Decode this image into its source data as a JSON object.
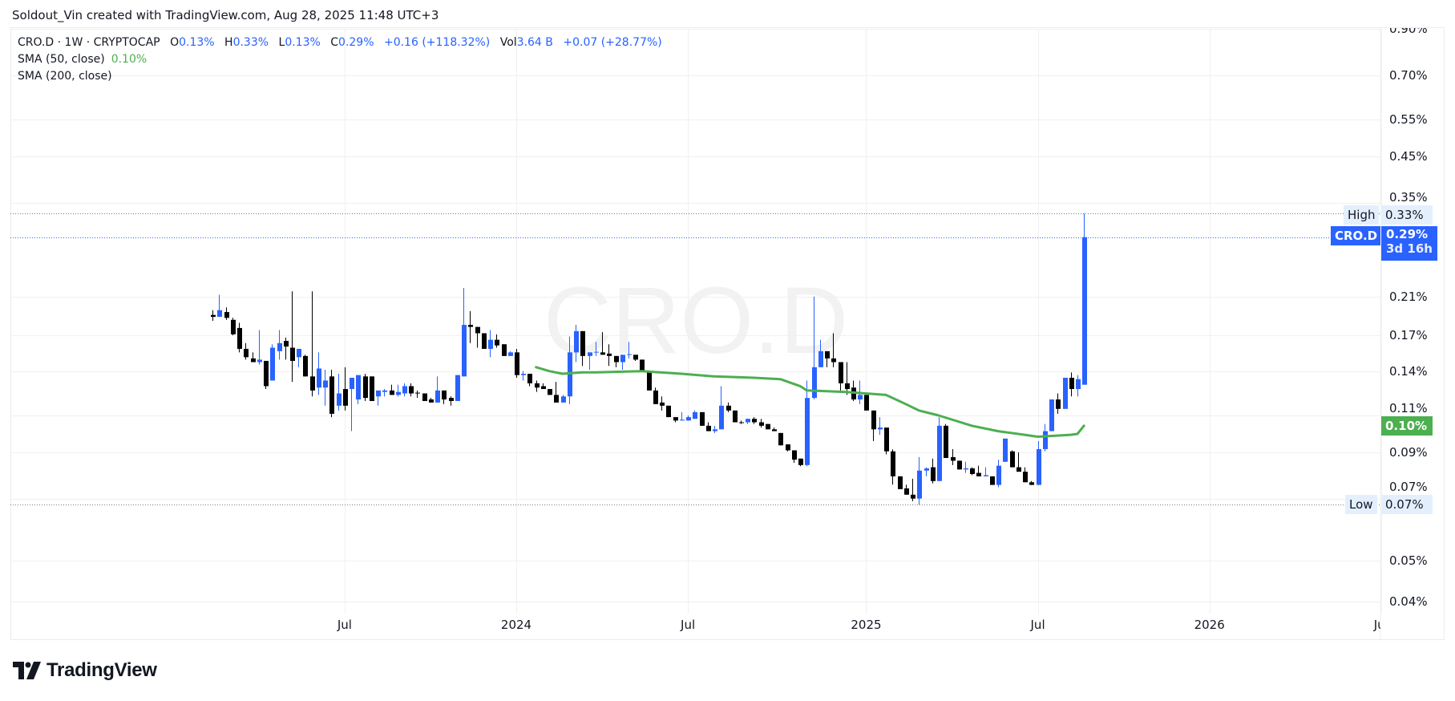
{
  "credit": "Soldout_Vin created with TradingView.com, Aug 28, 2025 11:48 UTC+3",
  "legend": {
    "symbol_line": "CRO.D · 1W · CRYPTOCAP",
    "open_label": "O",
    "open": "0.13%",
    "high_label": "H",
    "high": "0.33%",
    "low_label": "L",
    "low": "0.13%",
    "close_label": "C",
    "close": "0.29%",
    "change": "+0.16 (+118.32%)",
    "vol_label": "Vol",
    "vol": "3.64 B",
    "vol_change": "+0.07 (+28.77%)",
    "sma50_label": "SMA (50, close)",
    "sma50_value": "0.10%",
    "sma200_label": "SMA (200, close)"
  },
  "watermark": "CRO.D",
  "price_labels": {
    "high_tag": "High",
    "high_value": "0.33%",
    "symbol_tag": "CRO.D",
    "last_value": "0.29%",
    "countdown": "3d 16h",
    "sma_value": "0.10%",
    "low_tag": "Low",
    "low_value": "0.07%"
  },
  "logo_text": "TradingView",
  "colors": {
    "up": "#2962ff",
    "down": "#000000",
    "sma50": "#4caf50",
    "grid": "#f0f0f0",
    "label_bg": "#e3effd"
  },
  "chart_data": {
    "type": "candlestick",
    "symbol": "CRO.D",
    "interval": "1W",
    "y_scale": "log",
    "ylim": [
      0.038,
      0.92
    ],
    "grid": true,
    "y_ticks": [
      {
        "value": 0.9,
        "label": "0.90%"
      },
      {
        "value": 0.7,
        "label": "0.70%"
      },
      {
        "value": 0.55,
        "label": "0.55%"
      },
      {
        "value": 0.45,
        "label": "0.45%"
      },
      {
        "value": 0.35,
        "label": "0.35%"
      },
      {
        "value": 0.21,
        "label": "0.21%"
      },
      {
        "value": 0.17,
        "label": "0.17%"
      },
      {
        "value": 0.14,
        "label": "0.14%"
      },
      {
        "value": 0.11,
        "label": "0.11%"
      },
      {
        "value": 0.09,
        "label": "0.09%"
      },
      {
        "value": 0.07,
        "label": "0.07%"
      },
      {
        "value": 0.05,
        "label": "0.05%"
      },
      {
        "value": 0.04,
        "label": "0.04%"
      }
    ],
    "x_ticks": [
      {
        "date": "2023-07-03",
        "label": "Jul"
      },
      {
        "date": "2024-01-01",
        "label": "2024"
      },
      {
        "date": "2024-07-01",
        "label": "Jul"
      },
      {
        "date": "2025-01-06",
        "label": "2025"
      },
      {
        "date": "2025-07-07",
        "label": "Jul"
      },
      {
        "date": "2026-01-05",
        "label": "2026"
      },
      {
        "date": "2026-07-06",
        "label": "Jul"
      }
    ],
    "high_line": 0.33,
    "last_price": 0.29,
    "low_line": 0.0677,
    "columns": [
      "date",
      "open",
      "high",
      "low",
      "close"
    ],
    "candles": [
      [
        "2023-02-13",
        0.19,
        0.195,
        0.184,
        0.188
      ],
      [
        "2023-02-20",
        0.188,
        0.212,
        0.188,
        0.195
      ],
      [
        "2023-02-27",
        0.193,
        0.198,
        0.185,
        0.187
      ],
      [
        "2023-03-06",
        0.185,
        0.187,
        0.17,
        0.171
      ],
      [
        "2023-03-13",
        0.177,
        0.182,
        0.155,
        0.158
      ],
      [
        "2023-03-20",
        0.158,
        0.163,
        0.149,
        0.151
      ],
      [
        "2023-03-27",
        0.15,
        0.155,
        0.147,
        0.147
      ],
      [
        "2023-04-03",
        0.147,
        0.175,
        0.145,
        0.149
      ],
      [
        "2023-04-10",
        0.148,
        0.148,
        0.127,
        0.129
      ],
      [
        "2023-04-17",
        0.133,
        0.162,
        0.133,
        0.159
      ],
      [
        "2023-04-24",
        0.156,
        0.175,
        0.149,
        0.163
      ],
      [
        "2023-05-01",
        0.165,
        0.168,
        0.149,
        0.16
      ],
      [
        "2023-05-08",
        0.159,
        0.216,
        0.132,
        0.148
      ],
      [
        "2023-05-15",
        0.151,
        0.158,
        0.143,
        0.158
      ],
      [
        "2023-05-22",
        0.152,
        0.153,
        0.136,
        0.136
      ],
      [
        "2023-05-29",
        0.136,
        0.216,
        0.122,
        0.126
      ],
      [
        "2023-06-05",
        0.128,
        0.155,
        0.123,
        0.142
      ],
      [
        "2023-06-12",
        0.128,
        0.141,
        0.116,
        0.133
      ],
      [
        "2023-06-19",
        0.136,
        0.141,
        0.109,
        0.111
      ],
      [
        "2023-06-26",
        0.116,
        0.138,
        0.113,
        0.124
      ],
      [
        "2023-07-03",
        0.127,
        0.143,
        0.113,
        0.116
      ],
      [
        "2023-07-10",
        0.127,
        0.135,
        0.101,
        0.135
      ],
      [
        "2023-07-17",
        0.12,
        0.137,
        0.117,
        0.137
      ],
      [
        "2023-07-24",
        0.136,
        0.138,
        0.119,
        0.121
      ],
      [
        "2023-07-31",
        0.136,
        0.136,
        0.119,
        0.119
      ],
      [
        "2023-08-07",
        0.122,
        0.126,
        0.116,
        0.126
      ],
      [
        "2023-08-14",
        0.125,
        0.127,
        0.122,
        0.126
      ],
      [
        "2023-08-21",
        0.126,
        0.13,
        0.123,
        0.123
      ],
      [
        "2023-08-28",
        0.123,
        0.13,
        0.122,
        0.125
      ],
      [
        "2023-09-04",
        0.124,
        0.131,
        0.122,
        0.129
      ],
      [
        "2023-09-11",
        0.129,
        0.131,
        0.122,
        0.124
      ],
      [
        "2023-09-18",
        0.1245,
        0.126,
        0.121,
        0.124
      ],
      [
        "2023-09-25",
        0.124,
        0.124,
        0.119,
        0.119
      ],
      [
        "2023-10-02",
        0.12,
        0.121,
        0.118,
        0.118
      ],
      [
        "2023-10-09",
        0.118,
        0.136,
        0.118,
        0.126
      ],
      [
        "2023-10-16",
        0.126,
        0.126,
        0.117,
        0.12
      ],
      [
        "2023-10-23",
        0.121,
        0.122,
        0.116,
        0.119
      ],
      [
        "2023-10-30",
        0.119,
        0.137,
        0.119,
        0.137
      ],
      [
        "2023-11-06",
        0.136,
        0.22,
        0.136,
        0.18
      ],
      [
        "2023-11-13",
        0.18,
        0.194,
        0.163,
        0.178
      ],
      [
        "2023-11-20",
        0.178,
        0.178,
        0.159,
        0.172
      ],
      [
        "2023-11-27",
        0.172,
        0.172,
        0.158,
        0.158
      ],
      [
        "2023-12-04",
        0.158,
        0.175,
        0.151,
        0.166
      ],
      [
        "2023-12-11",
        0.166,
        0.171,
        0.159,
        0.161
      ],
      [
        "2023-12-18",
        0.162,
        0.162,
        0.152,
        0.152
      ],
      [
        "2023-12-25",
        0.152,
        0.156,
        0.152,
        0.155
      ],
      [
        "2024-01-01",
        0.155,
        0.158,
        0.135,
        0.137
      ],
      [
        "2024-01-08",
        0.137,
        0.14,
        0.133,
        0.138
      ],
      [
        "2024-01-15",
        0.138,
        0.138,
        0.129,
        0.131
      ],
      [
        "2024-01-22",
        0.131,
        0.133,
        0.125,
        0.128
      ],
      [
        "2024-01-29",
        0.129,
        0.131,
        0.127,
        0.127
      ],
      [
        "2024-02-05",
        0.127,
        0.127,
        0.123,
        0.123
      ],
      [
        "2024-02-12",
        0.123,
        0.132,
        0.118,
        0.118
      ],
      [
        "2024-02-19",
        0.118,
        0.123,
        0.118,
        0.122
      ],
      [
        "2024-02-26",
        0.122,
        0.169,
        0.117,
        0.155
      ],
      [
        "2024-03-04",
        0.155,
        0.18,
        0.147,
        0.174
      ],
      [
        "2024-03-11",
        0.174,
        0.174,
        0.144,
        0.152
      ],
      [
        "2024-03-18",
        0.152,
        0.155,
        0.141,
        0.155
      ],
      [
        "2024-03-25",
        0.155,
        0.164,
        0.152,
        0.1555
      ],
      [
        "2024-04-01",
        0.155,
        0.173,
        0.153,
        0.153
      ],
      [
        "2024-04-08",
        0.154,
        0.162,
        0.144,
        0.152
      ],
      [
        "2024-04-15",
        0.152,
        0.152,
        0.143,
        0.147
      ],
      [
        "2024-04-22",
        0.147,
        0.153,
        0.141,
        0.153
      ],
      [
        "2024-04-29",
        0.153,
        0.164,
        0.15,
        0.1535
      ],
      [
        "2024-05-06",
        0.153,
        0.153,
        0.148,
        0.149
      ],
      [
        "2024-05-13",
        0.149,
        0.149,
        0.14,
        0.14
      ],
      [
        "2024-05-20",
        0.14,
        0.14,
        0.126,
        0.126
      ],
      [
        "2024-05-27",
        0.126,
        0.128,
        0.117,
        0.117
      ],
      [
        "2024-06-03",
        0.118,
        0.122,
        0.113,
        0.116
      ],
      [
        "2024-06-10",
        0.116,
        0.116,
        0.109,
        0.109
      ],
      [
        "2024-06-17",
        0.109,
        0.109,
        0.106,
        0.107
      ],
      [
        "2024-06-24",
        0.107,
        0.112,
        0.107,
        0.1075
      ],
      [
        "2024-07-01",
        0.107,
        0.11,
        0.107,
        0.109
      ],
      [
        "2024-07-08",
        0.108,
        0.113,
        0.108,
        0.112
      ],
      [
        "2024-07-15",
        0.112,
        0.112,
        0.104,
        0.104
      ],
      [
        "2024-07-22",
        0.104,
        0.106,
        0.101,
        0.101
      ],
      [
        "2024-07-29",
        0.101,
        0.104,
        0.1,
        0.102
      ],
      [
        "2024-08-05",
        0.102,
        0.129,
        0.102,
        0.116
      ],
      [
        "2024-08-12",
        0.116,
        0.118,
        0.112,
        0.113
      ],
      [
        "2024-08-19",
        0.113,
        0.113,
        0.106,
        0.106
      ],
      [
        "2024-08-26",
        0.106,
        0.107,
        0.105,
        0.1058
      ],
      [
        "2024-09-02",
        0.106,
        0.108,
        0.105,
        0.108
      ],
      [
        "2024-09-09",
        0.108,
        0.109,
        0.105,
        0.106
      ],
      [
        "2024-09-16",
        0.106,
        0.108,
        0.103,
        0.104
      ],
      [
        "2024-09-23",
        0.105,
        0.105,
        0.102,
        0.102
      ],
      [
        "2024-09-30",
        0.102,
        0.103,
        0.101,
        0.101
      ],
      [
        "2024-10-07",
        0.1,
        0.1,
        0.0935,
        0.0935
      ],
      [
        "2024-10-14",
        0.094,
        0.094,
        0.0905,
        0.091
      ],
      [
        "2024-10-21",
        0.091,
        0.091,
        0.085,
        0.0865
      ],
      [
        "2024-10-28",
        0.087,
        0.087,
        0.0835,
        0.084
      ],
      [
        "2024-11-04",
        0.084,
        0.133,
        0.0835,
        0.121
      ],
      [
        "2024-11-11",
        0.121,
        0.21,
        0.12,
        0.143
      ],
      [
        "2024-11-18",
        0.143,
        0.166,
        0.143,
        0.156
      ],
      [
        "2024-11-25",
        0.156,
        0.156,
        0.143,
        0.15
      ],
      [
        "2024-12-02",
        0.15,
        0.172,
        0.143,
        0.147
      ],
      [
        "2024-12-09",
        0.147,
        0.147,
        0.126,
        0.131
      ],
      [
        "2024-12-16",
        0.131,
        0.147,
        0.123,
        0.127
      ],
      [
        "2024-12-23",
        0.128,
        0.133,
        0.119,
        0.12
      ],
      [
        "2024-12-30",
        0.12,
        0.133,
        0.117,
        0.123
      ],
      [
        "2025-01-06",
        0.123,
        0.123,
        0.113,
        0.113
      ],
      [
        "2025-01-13",
        0.113,
        0.113,
        0.0957,
        0.102
      ],
      [
        "2025-01-20",
        0.102,
        0.109,
        0.099,
        0.103
      ],
      [
        "2025-01-27",
        0.103,
        0.103,
        0.089,
        0.0905
      ],
      [
        "2025-02-03",
        0.0905,
        0.0915,
        0.0755,
        0.079
      ],
      [
        "2025-02-10",
        0.079,
        0.079,
        0.0737,
        0.0737
      ],
      [
        "2025-02-17",
        0.074,
        0.0755,
        0.0715,
        0.0715
      ],
      [
        "2025-02-24",
        0.0715,
        0.078,
        0.069,
        0.07
      ],
      [
        "2025-03-03",
        0.07,
        0.0877,
        0.0677,
        0.0815
      ],
      [
        "2025-03-10",
        0.0815,
        0.083,
        0.079,
        0.0825
      ],
      [
        "2025-03-17",
        0.083,
        0.087,
        0.076,
        0.077
      ],
      [
        "2025-03-24",
        0.077,
        0.109,
        0.077,
        0.104
      ],
      [
        "2025-03-31",
        0.104,
        0.105,
        0.0873,
        0.0873
      ],
      [
        "2025-04-07",
        0.0877,
        0.0916,
        0.084,
        0.086
      ],
      [
        "2025-04-14",
        0.086,
        0.086,
        0.082,
        0.082
      ],
      [
        "2025-04-21",
        0.082,
        0.0855,
        0.0805,
        0.0825
      ],
      [
        "2025-04-28",
        0.0825,
        0.083,
        0.0795,
        0.08
      ],
      [
        "2025-05-05",
        0.0805,
        0.0837,
        0.079,
        0.079
      ],
      [
        "2025-05-12",
        0.079,
        0.083,
        0.079,
        0.0795
      ],
      [
        "2025-05-19",
        0.079,
        0.079,
        0.0754,
        0.0754
      ],
      [
        "2025-05-26",
        0.0754,
        0.0865,
        0.0745,
        0.0837
      ],
      [
        "2025-06-02",
        0.0855,
        0.097,
        0.0855,
        0.097
      ],
      [
        "2025-06-09",
        0.0905,
        0.091,
        0.083,
        0.083
      ],
      [
        "2025-06-16",
        0.083,
        0.09,
        0.081,
        0.081
      ],
      [
        "2025-06-23",
        0.081,
        0.083,
        0.0765,
        0.0765
      ],
      [
        "2025-06-30",
        0.0765,
        0.077,
        0.0754,
        0.0754
      ],
      [
        "2025-07-07",
        0.0754,
        0.0957,
        0.0754,
        0.0916
      ],
      [
        "2025-07-14",
        0.0916,
        0.105,
        0.0905,
        0.101
      ],
      [
        "2025-07-21",
        0.101,
        0.12,
        0.101,
        0.12
      ],
      [
        "2025-07-28",
        0.12,
        0.124,
        0.111,
        0.114
      ],
      [
        "2025-08-04",
        0.114,
        0.135,
        0.114,
        0.135
      ],
      [
        "2025-08-11",
        0.135,
        0.139,
        0.122,
        0.127
      ],
      [
        "2025-08-18",
        0.127,
        0.137,
        0.122,
        0.134
      ],
      [
        "2025-08-25",
        0.13,
        0.33,
        0.13,
        0.29
      ]
    ],
    "sma50": [
      [
        "2024-01-22",
        0.143
      ],
      [
        "2024-02-05",
        0.14
      ],
      [
        "2024-02-19",
        0.138
      ],
      [
        "2024-03-11",
        0.139
      ],
      [
        "2024-03-25",
        0.139
      ],
      [
        "2024-05-13",
        0.14
      ],
      [
        "2024-06-24",
        0.138
      ],
      [
        "2024-07-29",
        0.136
      ],
      [
        "2024-09-09",
        0.135
      ],
      [
        "2024-10-07",
        0.134
      ],
      [
        "2024-10-28",
        0.129
      ],
      [
        "2024-11-04",
        0.126
      ],
      [
        "2024-12-16",
        0.125
      ],
      [
        "2025-01-27",
        0.123
      ],
      [
        "2025-02-17",
        0.117
      ],
      [
        "2025-03-03",
        0.113
      ],
      [
        "2025-03-24",
        0.11
      ],
      [
        "2025-04-28",
        0.104
      ],
      [
        "2025-05-26",
        0.101
      ],
      [
        "2025-06-23",
        0.099
      ],
      [
        "2025-07-07",
        0.098
      ],
      [
        "2025-08-11",
        0.099
      ],
      [
        "2025-08-18",
        0.0995
      ],
      [
        "2025-08-25",
        0.104
      ]
    ]
  }
}
